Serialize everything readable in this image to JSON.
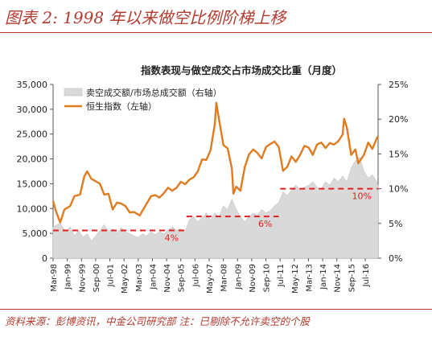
{
  "figure": {
    "title": "图表 2: 1998 年以来做空比例阶梯上移",
    "source": "资料来源：彭博资讯，中金公司研究部   注：已剔除不允许卖空的个股"
  },
  "chart_data": {
    "type": "line",
    "title": "指数表现与做空成交占市场成交比重（月度）",
    "x_tick_labels": [
      "Mar-98",
      "Jan-99",
      "Nov-99",
      "Sep-00",
      "Jul-01",
      "May-02",
      "Mar-03",
      "Jan-04",
      "Nov-04",
      "Sep-05",
      "Jul-06",
      "May-07",
      "Mar-08",
      "Jan-09",
      "Nov-09",
      "Sep-10",
      "Jul-11",
      "May-12",
      "Mar-13",
      "Jan-14",
      "Nov-14",
      "Sep-15",
      "Jul-16"
    ],
    "x_range": [
      "1998-03",
      "2017-04"
    ],
    "y_left": {
      "range": [
        0,
        35000
      ],
      "ticks": [
        "0",
        "5,000",
        "10,000",
        "15,000",
        "20,000",
        "25,000",
        "30,000",
        "35,000"
      ]
    },
    "y_right": {
      "range": [
        0,
        25
      ],
      "ticks": [
        "0%",
        "5%",
        "10%",
        "15%",
        "20%",
        "25%"
      ]
    },
    "legend_position": "top-left",
    "series": [
      {
        "name": "卖空成交额/市场总成交额（右轴）",
        "type": "area",
        "axis": "right",
        "color": "#d9d9d9",
        "values": [
          [
            "1998-03",
            4.5
          ],
          [
            "1998-08",
            5.0
          ],
          [
            "1998-12",
            3.8
          ],
          [
            "1999-03",
            4.5
          ],
          [
            "1999-06",
            3.2
          ],
          [
            "1999-09",
            4.0
          ],
          [
            "1999-12",
            3.0
          ],
          [
            "2000-03",
            3.5
          ],
          [
            "2000-06",
            2.5
          ],
          [
            "2000-09",
            3.2
          ],
          [
            "2000-12",
            4.0
          ],
          [
            "2001-03",
            4.8
          ],
          [
            "2001-06",
            3.8
          ],
          [
            "2001-09",
            4.2
          ],
          [
            "2001-12",
            3.6
          ],
          [
            "2002-03",
            4.4
          ],
          [
            "2002-06",
            3.8
          ],
          [
            "2002-09",
            3.5
          ],
          [
            "2002-12",
            3.2
          ],
          [
            "2003-03",
            3.0
          ],
          [
            "2003-06",
            3.5
          ],
          [
            "2003-09",
            3.2
          ],
          [
            "2003-12",
            3.8
          ],
          [
            "2004-03",
            3.4
          ],
          [
            "2004-06",
            3.8
          ],
          [
            "2004-09",
            3.5
          ],
          [
            "2004-12",
            4.0
          ],
          [
            "2005-03",
            4.5
          ],
          [
            "2005-06",
            4.0
          ],
          [
            "2005-09",
            4.2
          ],
          [
            "2005-12",
            3.8
          ],
          [
            "2006-03",
            5.5
          ],
          [
            "2006-06",
            6.0
          ],
          [
            "2006-09",
            5.2
          ],
          [
            "2006-12",
            5.8
          ],
          [
            "2007-03",
            6.5
          ],
          [
            "2007-06",
            5.5
          ],
          [
            "2007-09",
            6.5
          ],
          [
            "2007-12",
            6.0
          ],
          [
            "2008-03",
            7.5
          ],
          [
            "2008-06",
            7.0
          ],
          [
            "2008-09",
            8.5
          ],
          [
            "2008-12",
            7.0
          ],
          [
            "2009-03",
            6.0
          ],
          [
            "2009-06",
            5.2
          ],
          [
            "2009-09",
            6.0
          ],
          [
            "2009-12",
            6.5
          ],
          [
            "2010-03",
            6.2
          ],
          [
            "2010-06",
            7.0
          ],
          [
            "2010-09",
            6.5
          ],
          [
            "2010-12",
            6.8
          ],
          [
            "2011-03",
            7.5
          ],
          [
            "2011-06",
            8.0
          ],
          [
            "2011-09",
            9.5
          ],
          [
            "2011-12",
            9.0
          ],
          [
            "2012-03",
            9.8
          ],
          [
            "2012-06",
            10.5
          ],
          [
            "2012-09",
            9.8
          ],
          [
            "2012-12",
            10.2
          ],
          [
            "2013-03",
            10.5
          ],
          [
            "2013-06",
            11.0
          ],
          [
            "2013-09",
            10.2
          ],
          [
            "2013-12",
            10.0
          ],
          [
            "2014-03",
            11.0
          ],
          [
            "2014-06",
            10.5
          ],
          [
            "2014-09",
            11.5
          ],
          [
            "2014-12",
            11.0
          ],
          [
            "2015-03",
            11.8
          ],
          [
            "2015-06",
            11.0
          ],
          [
            "2015-09",
            13.0
          ],
          [
            "2015-12",
            14.0
          ],
          [
            "2016-03",
            14.5
          ],
          [
            "2016-06",
            12.5
          ],
          [
            "2016-09",
            11.5
          ],
          [
            "2016-12",
            12.0
          ],
          [
            "2017-03",
            11.0
          ],
          [
            "2017-04",
            10.5
          ]
        ]
      },
      {
        "name": "恒生指数（左轴）",
        "type": "line",
        "axis": "left",
        "color": "#e07b1f",
        "values": [
          [
            "1998-03",
            11500
          ],
          [
            "1998-05",
            9500
          ],
          [
            "1998-08",
            7200
          ],
          [
            "1998-11",
            9800
          ],
          [
            "1999-03",
            10500
          ],
          [
            "1999-06",
            12500
          ],
          [
            "1999-10",
            12800
          ],
          [
            "2000-01",
            16500
          ],
          [
            "2000-03",
            17500
          ],
          [
            "2000-06",
            16000
          ],
          [
            "2000-09",
            15500
          ],
          [
            "2000-12",
            15000
          ],
          [
            "2001-03",
            12800
          ],
          [
            "2001-06",
            13000
          ],
          [
            "2001-09",
            9800
          ],
          [
            "2001-12",
            11200
          ],
          [
            "2002-03",
            11000
          ],
          [
            "2002-06",
            10500
          ],
          [
            "2002-09",
            9200
          ],
          [
            "2002-12",
            9300
          ],
          [
            "2003-03",
            8800
          ],
          [
            "2003-04",
            8600
          ],
          [
            "2003-09",
            11000
          ],
          [
            "2003-12",
            12500
          ],
          [
            "2004-03",
            12700
          ],
          [
            "2004-06",
            12200
          ],
          [
            "2004-09",
            13100
          ],
          [
            "2004-12",
            14200
          ],
          [
            "2005-03",
            13600
          ],
          [
            "2005-06",
            14200
          ],
          [
            "2005-09",
            15400
          ],
          [
            "2005-12",
            14900
          ],
          [
            "2006-03",
            15800
          ],
          [
            "2006-06",
            16300
          ],
          [
            "2006-09",
            17500
          ],
          [
            "2006-12",
            19900
          ],
          [
            "2007-03",
            19800
          ],
          [
            "2007-06",
            21800
          ],
          [
            "2007-09",
            27100
          ],
          [
            "2007-10",
            31300
          ],
          [
            "2007-12",
            27800
          ],
          [
            "2008-03",
            22800
          ],
          [
            "2008-06",
            22100
          ],
          [
            "2008-09",
            18000
          ],
          [
            "2008-10",
            13000
          ],
          [
            "2008-12",
            14400
          ],
          [
            "2009-03",
            13600
          ],
          [
            "2009-06",
            18300
          ],
          [
            "2009-09",
            20900
          ],
          [
            "2009-12",
            21900
          ],
          [
            "2010-03",
            21200
          ],
          [
            "2010-06",
            20100
          ],
          [
            "2010-09",
            22400
          ],
          [
            "2010-12",
            23000
          ],
          [
            "2011-03",
            23500
          ],
          [
            "2011-06",
            22400
          ],
          [
            "2011-09",
            17600
          ],
          [
            "2011-12",
            18400
          ],
          [
            "2012-03",
            20500
          ],
          [
            "2012-06",
            19400
          ],
          [
            "2012-09",
            20800
          ],
          [
            "2012-12",
            22600
          ],
          [
            "2013-03",
            22300
          ],
          [
            "2013-06",
            20800
          ],
          [
            "2013-09",
            22900
          ],
          [
            "2013-12",
            23300
          ],
          [
            "2014-03",
            22200
          ],
          [
            "2014-06",
            23200
          ],
          [
            "2014-09",
            22900
          ],
          [
            "2014-12",
            23600
          ],
          [
            "2015-03",
            24900
          ],
          [
            "2015-04",
            28100
          ],
          [
            "2015-06",
            26300
          ],
          [
            "2015-09",
            20800
          ],
          [
            "2015-12",
            21900
          ],
          [
            "2016-02",
            19100
          ],
          [
            "2016-06",
            20800
          ],
          [
            "2016-09",
            23300
          ],
          [
            "2016-12",
            22000
          ],
          [
            "2017-03",
            24100
          ],
          [
            "2017-04",
            24600
          ]
        ]
      }
    ],
    "step_markers": [
      {
        "label": "4%",
        "value": 4,
        "from": "1998-03",
        "to": "2005-12",
        "color": "#e02020"
      },
      {
        "label": "6%",
        "value": 6,
        "from": "2006-01",
        "to": "2011-06",
        "color": "#e02020"
      },
      {
        "label": "10%",
        "value": 10,
        "from": "2011-07",
        "to": "2017-04",
        "color": "#e02020"
      }
    ]
  }
}
